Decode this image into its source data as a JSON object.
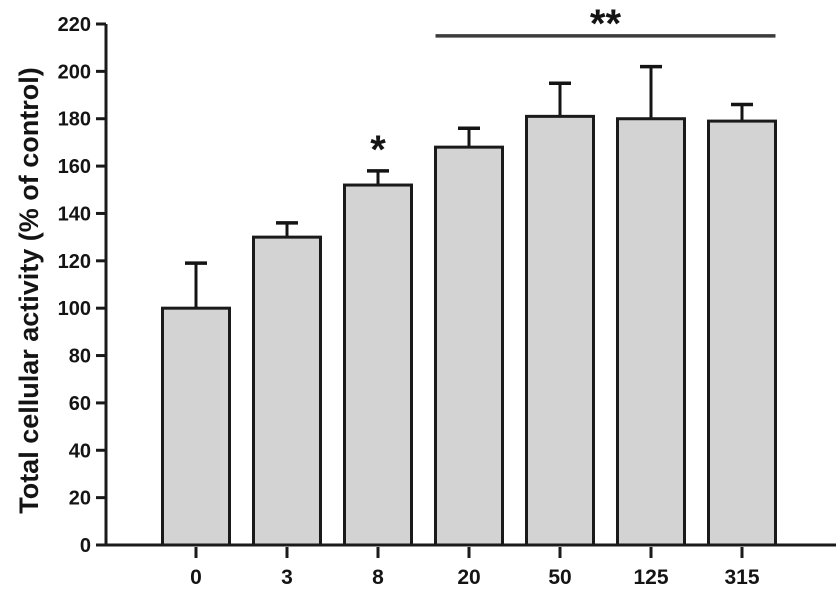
{
  "figure": {
    "background": "#ffffff"
  },
  "chart_data": {
    "type": "bar",
    "title": "",
    "xlabel": "",
    "ylabel": "Total cellular activity (% of control)",
    "categories": [
      "0",
      "3",
      "8",
      "20",
      "50",
      "125",
      "315"
    ],
    "series": [
      {
        "name": "Total cellular activity (% of control)",
        "values": [
          100,
          130,
          152,
          168,
          181,
          180,
          179
        ],
        "errors_plus": [
          19,
          6,
          6,
          8,
          14,
          22,
          7
        ]
      }
    ],
    "ylim": [
      0,
      220
    ],
    "yticks": [
      0,
      20,
      40,
      60,
      80,
      100,
      120,
      140,
      160,
      180,
      200,
      220
    ],
    "grid": false,
    "legend": null,
    "annotations": [
      {
        "type": "star",
        "label": "*",
        "category": "8",
        "category_index": 2
      },
      {
        "type": "significance-bar",
        "label": "**",
        "from_category": "20",
        "to_category": "315",
        "from_index": 3,
        "to_index": 6,
        "y_value": 215
      }
    ],
    "colors": {
      "bar_fill": "#d3d3d3",
      "bar_stroke": "#1a1a1a",
      "axis": "#1a1a1a",
      "error_bar": "#141414",
      "significance_line": "#3c3c3c",
      "text": "#141414"
    }
  }
}
